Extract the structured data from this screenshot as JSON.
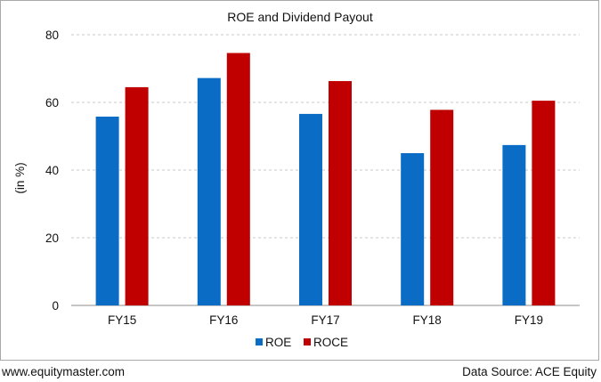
{
  "chart_data": {
    "type": "bar",
    "title": "ROE and Dividend Payout",
    "ylabel": "(in %)",
    "xlabel": "",
    "categories": [
      "FY15",
      "FY16",
      "FY17",
      "FY18",
      "FY19"
    ],
    "series": [
      {
        "name": "ROE",
        "color": "#0a6cc4",
        "values": [
          55.8,
          67.2,
          56.6,
          45.0,
          47.4
        ]
      },
      {
        "name": "ROCE",
        "color": "#c00000",
        "values": [
          64.5,
          74.6,
          66.3,
          57.8,
          60.5
        ]
      }
    ],
    "ylim": [
      0,
      80
    ],
    "yticks": [
      0,
      20,
      40,
      60,
      80
    ],
    "grid": true,
    "legend_position": "bottom-center"
  },
  "footer": {
    "website": "www.equitymaster.com",
    "source": "Data Source: ACE Equity"
  }
}
